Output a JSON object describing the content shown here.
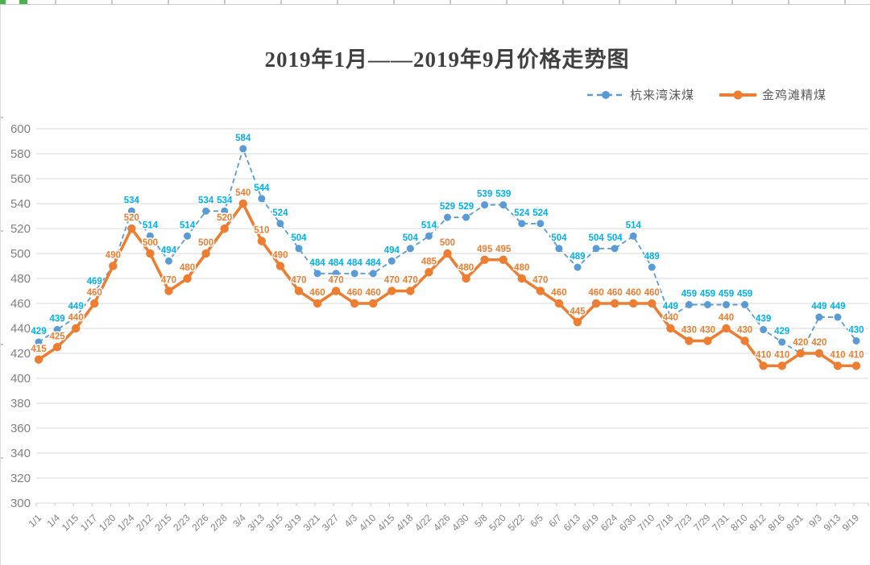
{
  "window": {
    "top_edge_marks": "spreadsheet column ruler with green selection marks"
  },
  "chart_data": {
    "type": "line",
    "title": "2019年1月——2019年9月价格走势图",
    "categories": [
      "1/1",
      "1/4",
      "1/15",
      "1/17",
      "1/20",
      "1/24",
      "2/12",
      "2/15",
      "2/23",
      "2/26",
      "2/28",
      "3/4",
      "3/13",
      "3/15",
      "3/19",
      "3/21",
      "3/27",
      "4/3",
      "4/10",
      "4/15",
      "4/18",
      "4/22",
      "4/26",
      "4/30",
      "5/8",
      "5/20",
      "5/22",
      "6/5",
      "6/7",
      "6/13",
      "6/19",
      "6/24",
      "6/30",
      "7/10",
      "7/18",
      "7/23",
      "7/29",
      "7/31",
      "8/10",
      "8/12",
      "8/16",
      "8/31",
      "9/3",
      "9/13",
      "9/19"
    ],
    "series": [
      {
        "name": "杭来湾沫煤",
        "style": "dashed",
        "color": "#5B9BD5",
        "label_color": "#00B0F0",
        "values": [
          429,
          439,
          449,
          469,
          490,
          534,
          514,
          494,
          514,
          534,
          534,
          584,
          544,
          524,
          504,
          484,
          484,
          484,
          484,
          494,
          504,
          514,
          529,
          529,
          539,
          539,
          524,
          524,
          504,
          489,
          504,
          504,
          514,
          489,
          449,
          459,
          459,
          459,
          459,
          439,
          429,
          420,
          449,
          449,
          430
        ]
      },
      {
        "name": "金鸡滩精煤",
        "style": "solid",
        "color": "#ED7D31",
        "label_color": "#ED7D31",
        "values": [
          415,
          425,
          440,
          460,
          490,
          520,
          500,
          470,
          480,
          500,
          520,
          540,
          510,
          490,
          470,
          460,
          470,
          460,
          460,
          470,
          470,
          485,
          500,
          480,
          495,
          495,
          480,
          470,
          460,
          445,
          460,
          460,
          460,
          460,
          440,
          430,
          430,
          440,
          430,
          410,
          410,
          420,
          420,
          410,
          410
        ]
      }
    ],
    "ylim": [
      300,
      600
    ],
    "ytick_step": 20,
    "grid": true,
    "gridline_color": "#D9D9D9",
    "axis_label_color": "#808080",
    "data_labels": true,
    "legend_position": "top-right"
  }
}
